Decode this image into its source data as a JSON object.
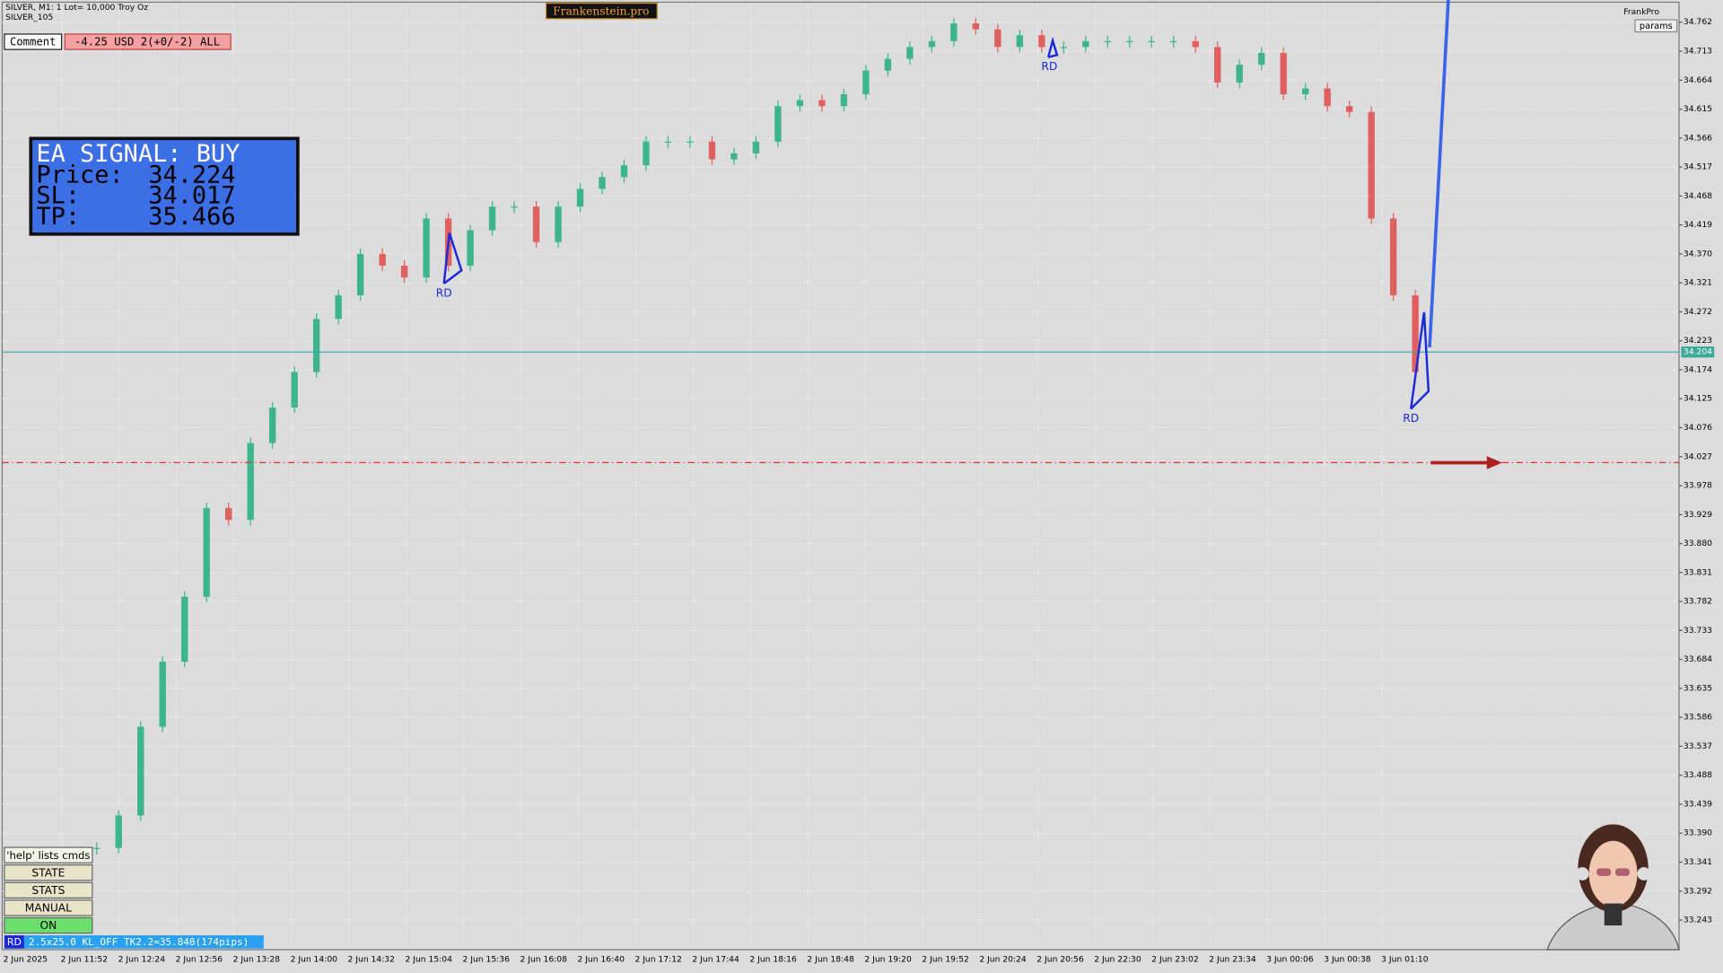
{
  "header": {
    "symbol": "SILVER, M1:  1 Lot= 10,000 Troy Oz",
    "account": "SILVER_105",
    "brand": "Frankenstein.pro",
    "corner": "FrankPro",
    "params": "params"
  },
  "comment": {
    "label": "Comment",
    "text": "-4.25 USD 2(+0/-2) ALL"
  },
  "signal": {
    "title": "EA SIGNAL: BUY",
    "price_label": "Price:",
    "price": 34.224,
    "sl_label": "SL:",
    "sl": 34.017,
    "tp_label": "TP:",
    "tp": 35.466
  },
  "buttons": {
    "help": "'help' lists cmds",
    "state": "STATE",
    "stats": "STATS",
    "manual": "MANUAL",
    "on": "ON"
  },
  "status": {
    "tag": "RD",
    "text": "2.5x25.0 KL_OFF TK2.2=35.848(174pips)"
  },
  "chart_data": {
    "type": "candlestick",
    "color_up": "#3cb48c",
    "color_down": "#e06060",
    "grid": true,
    "ylim": [
      33.193,
      34.794
    ],
    "yticks": [
      34.762,
      34.713,
      34.664,
      34.615,
      34.566,
      34.517,
      34.468,
      34.419,
      {
        "value": 34.37,
        "label": "34.370"
      },
      34.321,
      34.272,
      34.223,
      34.174,
      34.125,
      34.076,
      34.027,
      33.978,
      33.929,
      {
        "value": 33.88,
        "label": "33.880"
      },
      33.831,
      33.782,
      33.733,
      33.684,
      33.635,
      33.586,
      33.537,
      33.488,
      33.439,
      {
        "value": 33.39,
        "label": "33.390"
      },
      33.341,
      33.292,
      33.243
    ],
    "x_labels": [
      "2 Jun 2025",
      "2 Jun 11:52",
      "2 Jun 12:24",
      "2 Jun 12:56",
      "2 Jun 13:28",
      "2 Jun 14:00",
      "2 Jun 14:32",
      "2 Jun 15:04",
      "2 Jun 15:36",
      "2 Jun 16:08",
      "2 Jun 16:40",
      "2 Jun 17:12",
      "2 Jun 17:44",
      "2 Jun 18:16",
      "2 Jun 18:48",
      "2 Jun 19:20",
      "2 Jun 19:52",
      "2 Jun 20:24",
      "2 Jun 20:56",
      "2 Jun 22:30",
      "2 Jun 23:02",
      "2 Jun 23:34",
      "3 Jun 00:06",
      "3 Jun 00:38",
      "3 Jun 01:10"
    ],
    "values": [
      33.365,
      33.42,
      33.57,
      33.68,
      33.79,
      33.94,
      33.92,
      34.05,
      34.11,
      34.17,
      34.26,
      34.3,
      34.37,
      34.35,
      34.33,
      34.43,
      34.35,
      34.41,
      34.45,
      34.45,
      34.39,
      34.45,
      34.48,
      34.5,
      34.52,
      34.56,
      34.56,
      34.56,
      34.53,
      34.54,
      34.56,
      34.62,
      34.63,
      34.62,
      34.64,
      34.68,
      34.7,
      34.72,
      34.73,
      34.76,
      34.75,
      34.72,
      34.74,
      34.72,
      34.72,
      34.73,
      34.73,
      34.73,
      34.73,
      34.73,
      34.72,
      34.66,
      34.69,
      34.71,
      34.64,
      34.65,
      34.62,
      34.61,
      34.43,
      34.3,
      34.17
    ],
    "current_price": 34.204,
    "current_color": "#3aa89a",
    "sl_color": "#e03030",
    "rd_labels": [
      "RD",
      "RD",
      "RD"
    ]
  }
}
